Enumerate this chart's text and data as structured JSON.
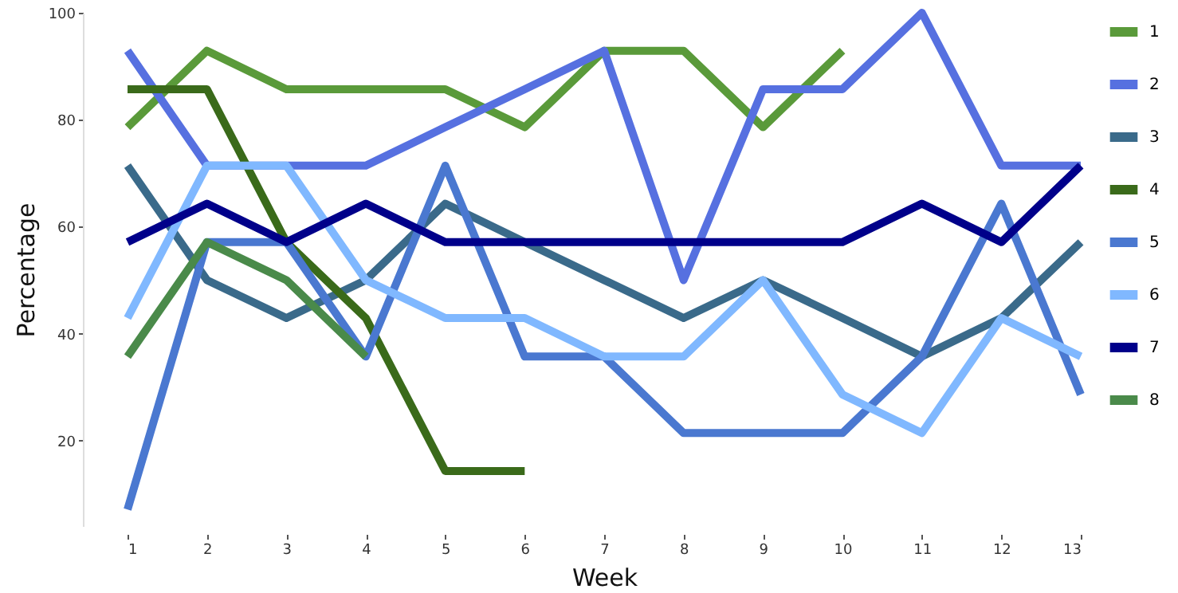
{
  "chart_data": {
    "type": "line",
    "xlabel": "Week",
    "ylabel": "Percentage",
    "x": [
      1,
      2,
      3,
      4,
      5,
      6,
      7,
      8,
      9,
      10,
      11,
      12,
      13
    ],
    "xlim": [
      1,
      13
    ],
    "xticks": [
      1,
      2,
      3,
      4,
      5,
      6,
      7,
      8,
      9,
      10,
      11,
      12,
      13
    ],
    "ylim": [
      4,
      100
    ],
    "yticks": [
      20,
      40,
      60,
      80,
      100
    ],
    "grid": false,
    "legend": "right",
    "marker": "none",
    "line_style": "solid",
    "series": [
      {
        "name": "1",
        "color": "#5a9a3a",
        "values": [
          78.6,
          92.9,
          85.7,
          85.7,
          85.7,
          78.6,
          92.9,
          92.9,
          78.6,
          92.9,
          null,
          null,
          null
        ]
      },
      {
        "name": "2",
        "color": "#5670e0",
        "values": [
          92.9,
          71.4,
          71.4,
          71.4,
          78.6,
          85.7,
          92.9,
          50,
          85.7,
          85.7,
          100,
          71.4,
          71.4
        ]
      },
      {
        "name": "3",
        "color": "#3a6a8a",
        "values": [
          71.4,
          50,
          42.9,
          50,
          64.3,
          57.1,
          50,
          42.9,
          50,
          42.9,
          35.7,
          42.9,
          57.1
        ]
      },
      {
        "name": "4",
        "color": "#3a6a1a",
        "values": [
          85.7,
          85.7,
          57.1,
          42.9,
          14.3,
          14.3,
          null,
          null,
          null,
          null,
          null,
          null,
          null
        ]
      },
      {
        "name": "5",
        "color": "#4a78d0",
        "values": [
          7.1,
          57.1,
          57.1,
          35.7,
          71.4,
          35.7,
          35.7,
          21.4,
          21.4,
          21.4,
          35.7,
          64.3,
          28.6
        ]
      },
      {
        "name": "6",
        "color": "#80b8ff",
        "values": [
          42.9,
          71.4,
          71.4,
          50,
          42.9,
          42.9,
          35.7,
          35.7,
          50,
          28.6,
          21.4,
          42.9,
          35.7
        ]
      },
      {
        "name": "7",
        "color": "#00008a",
        "values": [
          57.1,
          64.3,
          57.1,
          64.3,
          57.1,
          57.1,
          57.1,
          57.1,
          57.1,
          57.1,
          64.3,
          57.1,
          71.4
        ]
      },
      {
        "name": "8",
        "color": "#4a8a4a",
        "values": [
          35.7,
          57.1,
          50,
          35.7,
          null,
          null,
          null,
          null,
          null,
          null,
          null,
          null,
          null
        ]
      }
    ]
  }
}
